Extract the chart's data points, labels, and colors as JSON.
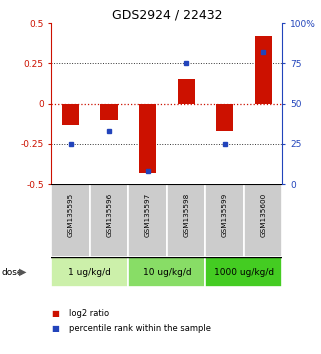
{
  "title": "GDS2924 / 22432",
  "samples": [
    "GSM135595",
    "GSM135596",
    "GSM135597",
    "GSM135598",
    "GSM135599",
    "GSM135600"
  ],
  "log2_ratio": [
    -0.13,
    -0.1,
    -0.43,
    0.15,
    -0.17,
    0.42
  ],
  "percentile_rank": [
    25,
    33,
    8,
    75,
    25,
    82
  ],
  "dose_groups": [
    {
      "label": "1 ug/kg/d",
      "start": 0,
      "end": 2,
      "color": "#ccf0aa"
    },
    {
      "label": "10 ug/kg/d",
      "start": 2,
      "end": 4,
      "color": "#88dd66"
    },
    {
      "label": "1000 ug/kg/d",
      "start": 4,
      "end": 6,
      "color": "#44cc22"
    }
  ],
  "ylim_left": [
    -0.5,
    0.5
  ],
  "ylim_right": [
    0,
    100
  ],
  "yticks_left": [
    -0.5,
    -0.25,
    0,
    0.25,
    0.5
  ],
  "ytick_labels_left": [
    "-0.5",
    "-0.25",
    "0",
    "0.25",
    "0.5"
  ],
  "yticks_right": [
    0,
    25,
    50,
    75,
    100
  ],
  "ytick_labels_right": [
    "0",
    "25",
    "50",
    "75",
    "100%"
  ],
  "bar_color": "#cc1100",
  "square_color": "#2244bb",
  "hline_color": "#cc1100",
  "dotted_color": "#333333",
  "sample_bg_color": "#cccccc",
  "legend_red_label": "log2 ratio",
  "legend_blue_label": "percentile rank within the sample"
}
